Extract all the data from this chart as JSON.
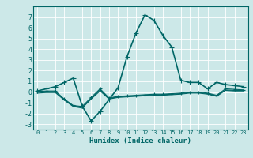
{
  "xlabel": "Humidex (Indice chaleur)",
  "background_color": "#cce8e8",
  "grid_color": "#ffffff",
  "line_color": "#006666",
  "xlim": [
    -0.5,
    23.5
  ],
  "ylim": [
    -3.5,
    8.0
  ],
  "xticks": [
    0,
    1,
    2,
    3,
    4,
    5,
    6,
    7,
    8,
    9,
    10,
    11,
    12,
    13,
    14,
    15,
    16,
    17,
    18,
    19,
    20,
    21,
    22,
    23
  ],
  "yticks": [
    -3,
    -2,
    -1,
    0,
    1,
    2,
    3,
    4,
    5,
    6,
    7
  ],
  "series": [
    {
      "x": [
        0,
        1,
        2,
        3,
        4,
        5,
        6,
        7,
        8,
        9,
        10,
        11,
        12,
        13,
        14,
        15,
        16,
        17,
        18,
        19,
        20,
        21,
        22,
        23
      ],
      "y": [
        0.1,
        0.3,
        0.5,
        0.9,
        1.3,
        -1.3,
        -2.7,
        -1.8,
        -0.7,
        0.4,
        3.3,
        5.5,
        7.2,
        6.7,
        5.3,
        4.2,
        1.1,
        0.9,
        0.9,
        0.3,
        0.9,
        0.7,
        0.6,
        0.5
      ],
      "marker": "+",
      "linewidth": 1.2,
      "markersize": 4
    },
    {
      "x": [
        0,
        1,
        2,
        3,
        4,
        5,
        6,
        7,
        8,
        9,
        10,
        11,
        12,
        13,
        14,
        15,
        16,
        17,
        18,
        19,
        20,
        21,
        22,
        23
      ],
      "y": [
        0.05,
        0.1,
        0.1,
        -0.65,
        -1.25,
        -1.35,
        -0.5,
        0.3,
        -0.55,
        -0.4,
        -0.35,
        -0.3,
        -0.25,
        -0.2,
        -0.2,
        -0.15,
        -0.1,
        0.0,
        0.0,
        -0.1,
        -0.3,
        0.3,
        0.25,
        0.2
      ],
      "marker": "+",
      "linewidth": 0.8,
      "markersize": 3
    },
    {
      "x": [
        0,
        1,
        2,
        3,
        4,
        5,
        6,
        7,
        8,
        9,
        10,
        11,
        12,
        13,
        14,
        15,
        16,
        17,
        18,
        19,
        20,
        21,
        22,
        23
      ],
      "y": [
        -0.1,
        -0.05,
        -0.05,
        -0.75,
        -1.35,
        -1.5,
        -0.65,
        0.1,
        -0.65,
        -0.5,
        -0.45,
        -0.4,
        -0.35,
        -0.3,
        -0.3,
        -0.25,
        -0.2,
        -0.1,
        -0.1,
        -0.2,
        -0.4,
        0.15,
        0.1,
        0.1
      ],
      "marker": null,
      "linewidth": 0.8,
      "markersize": 0
    },
    {
      "x": [
        0,
        1,
        2,
        3,
        4,
        5,
        6,
        7,
        8,
        9,
        10,
        11,
        12,
        13,
        14,
        15,
        16,
        17,
        18,
        19,
        20,
        21,
        22,
        23
      ],
      "y": [
        0.0,
        0.05,
        0.05,
        -0.7,
        -1.3,
        -1.4,
        -0.6,
        0.2,
        -0.6,
        -0.45,
        -0.4,
        -0.35,
        -0.3,
        -0.25,
        -0.25,
        -0.2,
        -0.15,
        -0.05,
        -0.05,
        -0.15,
        -0.35,
        0.2,
        0.15,
        0.15
      ],
      "marker": null,
      "linewidth": 0.8,
      "markersize": 0
    }
  ]
}
